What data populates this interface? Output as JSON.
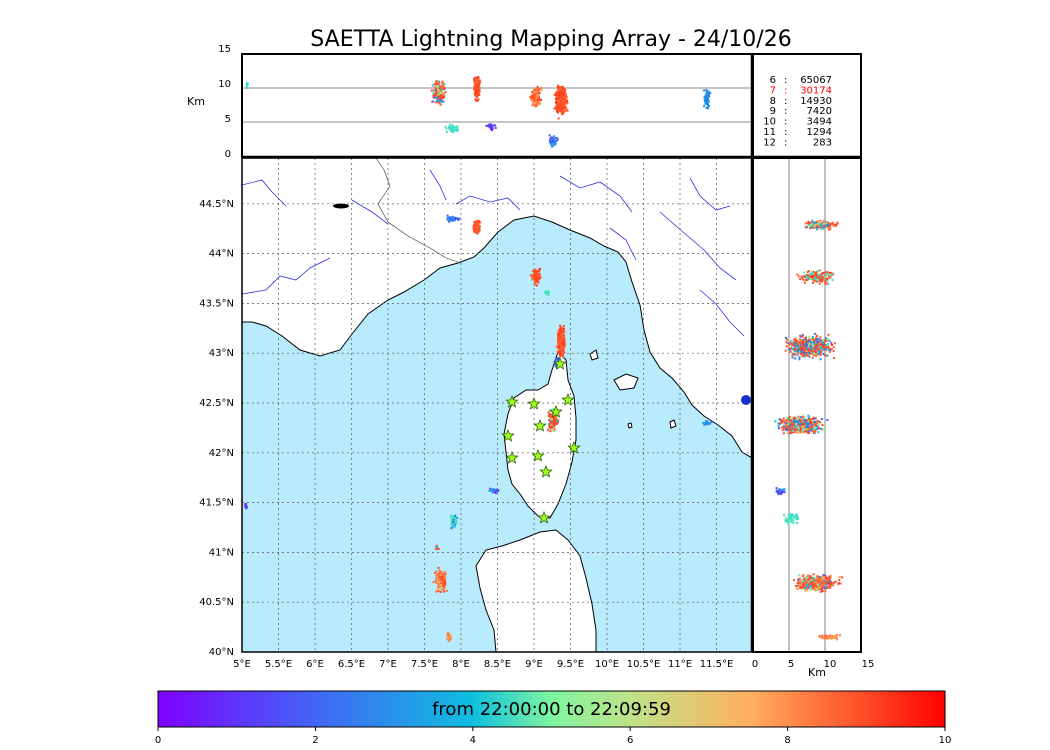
{
  "title": "SAETTA Lightning Mapping Array - 24/10/26",
  "colors": {
    "sea": "#b8ecfc",
    "land": "#ffffff",
    "river": "#3030e0",
    "coast": "#000000",
    "grid": "#555555"
  },
  "top_panel": {
    "ylabel": "Km",
    "yticks": [
      "15",
      "10",
      "5",
      "0"
    ]
  },
  "right_panel": {
    "xlabel": "Km",
    "xticks": [
      "0",
      "5",
      "10",
      "15"
    ]
  },
  "counts": [
    {
      "level": "6",
      "value": "65067",
      "color": "#000000"
    },
    {
      "level": "7",
      "value": "30174",
      "color": "#ff0000"
    },
    {
      "level": "8",
      "value": "14930",
      "color": "#000000"
    },
    {
      "level": "9",
      "value": "7420",
      "color": "#000000"
    },
    {
      "level": "10",
      "value": "3494",
      "color": "#000000"
    },
    {
      "level": "11",
      "value": "1294",
      "color": "#000000"
    },
    {
      "level": "12",
      "value": "283",
      "color": "#000000"
    }
  ],
  "map": {
    "lon_labels": [
      "5°E",
      "5.5°E",
      "6°E",
      "6.5°E",
      "7°E",
      "7.5°E",
      "8°E",
      "8.5°E",
      "9°E",
      "9.5°E",
      "10°E",
      "10.5°E",
      "11°E",
      "11.5°E"
    ],
    "lat_labels": [
      "40°N",
      "40.5°N",
      "41°N",
      "41.5°N",
      "42°N",
      "42.5°N",
      "43°N",
      "43.5°N",
      "44°N",
      "44.5°N"
    ]
  },
  "colorbar": {
    "label": "from 22:00:00 to 22:09:59",
    "ticks": [
      "0",
      "2",
      "4",
      "6",
      "8",
      "10"
    ]
  }
}
